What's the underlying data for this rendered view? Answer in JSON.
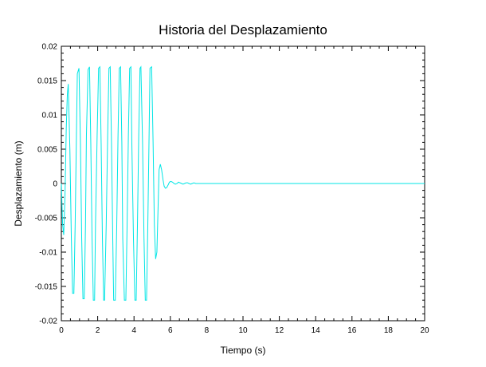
{
  "chart_data": {
    "type": "line",
    "title": "Historia del Desplazamiento",
    "xlabel": "Tiempo (s)",
    "ylabel": "Desplazamiento (m)",
    "xlim": [
      0,
      20
    ],
    "ylim": [
      -0.02,
      0.02
    ],
    "x_ticks": [
      0,
      2,
      4,
      6,
      8,
      10,
      12,
      14,
      16,
      18,
      20
    ],
    "x_tick_labels": [
      "0",
      "2",
      "4",
      "6",
      "8",
      "10",
      "12",
      "14",
      "16",
      "18",
      "20"
    ],
    "y_ticks": [
      -0.02,
      -0.015,
      -0.01,
      -0.005,
      0,
      0.005,
      0.01,
      0.015,
      0.02
    ],
    "y_tick_labels": [
      "-0.02",
      "-0.015",
      "-0.01",
      "-0.005",
      "0",
      "0.005",
      "0.01",
      "0.015",
      "0.02"
    ],
    "grid": false,
    "colors": {
      "series": "#00e5e5",
      "axes": "#000000",
      "background": "#ffffff"
    },
    "series": [
      {
        "x": [
          0.0,
          0.07,
          0.13,
          0.2,
          0.27,
          0.33,
          0.38,
          0.47,
          0.55,
          0.62,
          0.69,
          0.76,
          0.83,
          0.88,
          0.97,
          1.05,
          1.12,
          1.19,
          1.26,
          1.33,
          1.38,
          1.47,
          1.55,
          1.62,
          1.69,
          1.76,
          1.83,
          1.88,
          1.97,
          2.05,
          2.12,
          2.19,
          2.26,
          2.33,
          2.38,
          2.47,
          2.55,
          2.62,
          2.69,
          2.76,
          2.83,
          2.88,
          2.97,
          3.05,
          3.12,
          3.19,
          3.26,
          3.33,
          3.38,
          3.47,
          3.55,
          3.62,
          3.69,
          3.76,
          3.83,
          3.88,
          3.97,
          4.05,
          4.12,
          4.19,
          4.26,
          4.33,
          4.38,
          4.47,
          4.55,
          4.62,
          4.69,
          4.76,
          4.83,
          4.88,
          4.97,
          5.05,
          5.12,
          5.19,
          5.26,
          5.33,
          5.38,
          5.45,
          5.52,
          5.6,
          5.66,
          5.73,
          5.8,
          5.88,
          5.95,
          6.03,
          6.12,
          6.2,
          6.28,
          6.37,
          6.45,
          6.53,
          6.62,
          6.7,
          6.78,
          6.87,
          6.95,
          7.03,
          7.12,
          7.2,
          7.3,
          7.4,
          7.5,
          7.65,
          7.8,
          8.0,
          9.0,
          10.0,
          12.0,
          14.0,
          16.0,
          18.0,
          20.0
        ],
        "y": [
          0.0,
          -0.006,
          -0.0075,
          -0.002,
          0.008,
          0.013,
          0.0145,
          0.005,
          -0.008,
          -0.016,
          -0.016,
          -0.006,
          0.007,
          0.016,
          0.0168,
          0.006,
          -0.008,
          -0.0168,
          -0.0168,
          -0.006,
          0.007,
          0.0166,
          0.017,
          0.006,
          -0.008,
          -0.017,
          -0.017,
          -0.006,
          0.007,
          0.0168,
          0.017,
          0.006,
          -0.008,
          -0.017,
          -0.017,
          -0.006,
          0.007,
          0.0168,
          0.017,
          0.006,
          -0.008,
          -0.017,
          -0.017,
          -0.006,
          0.007,
          0.0168,
          0.017,
          0.006,
          -0.008,
          -0.017,
          -0.017,
          -0.006,
          0.007,
          0.0168,
          0.017,
          0.006,
          -0.008,
          -0.017,
          -0.017,
          -0.006,
          0.007,
          0.0168,
          0.017,
          0.006,
          -0.008,
          -0.017,
          -0.017,
          -0.006,
          0.007,
          0.0168,
          0.017,
          0.006,
          -0.006,
          -0.011,
          -0.01,
          -0.003,
          0.002,
          0.0028,
          0.002,
          0.0005,
          -0.0004,
          -0.0007,
          -0.0006,
          -0.0002,
          0.0002,
          0.0003,
          0.0002,
          0.0,
          -0.0001,
          0.0,
          0.0002,
          0.0001,
          0.0,
          -0.0001,
          0.0,
          0.0001,
          0.0001,
          0.0,
          -0.0001,
          0.0,
          0.0001,
          0.0,
          0.0,
          0.0,
          0.0,
          0.0,
          0.0,
          0.0,
          0.0,
          0.0,
          0.0,
          0.0,
          0.0
        ]
      }
    ]
  }
}
